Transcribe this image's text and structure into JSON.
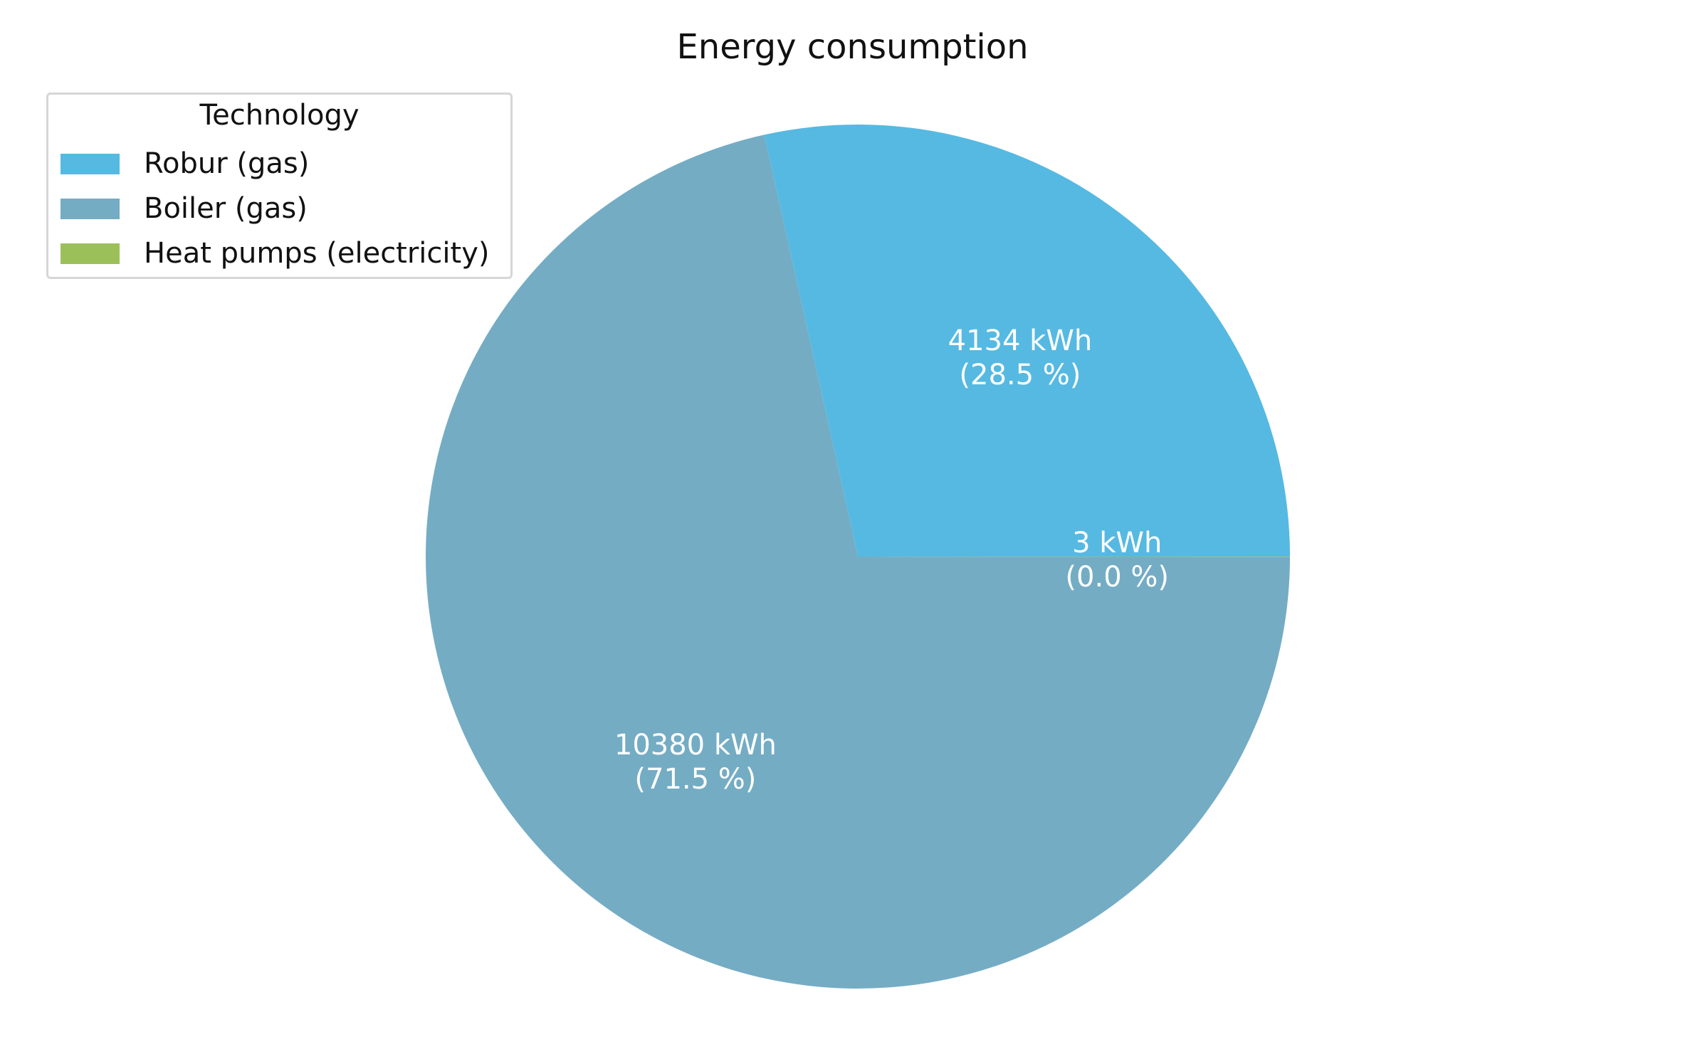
{
  "chart_data": {
    "type": "pie",
    "title": "Energy consumption",
    "legend": {
      "title": "Technology",
      "placement": "upper-left"
    },
    "unit": "kWh",
    "slices": [
      {
        "label": "Robur (gas)",
        "value": 4134,
        "value_text": "4134 kWh",
        "percent_text": "(28.5 %)",
        "color": "#56b9e2"
      },
      {
        "label": "Boiler (gas)",
        "value": 10380,
        "value_text": "10380 kWh",
        "percent_text": "(71.5 %)",
        "color": "#74acc4"
      },
      {
        "label": "Heat pumps (electricity)",
        "value": 3,
        "value_text": "3 kWh",
        "percent_text": "(0.0 %)",
        "color": "#9bc05a"
      }
    ]
  }
}
